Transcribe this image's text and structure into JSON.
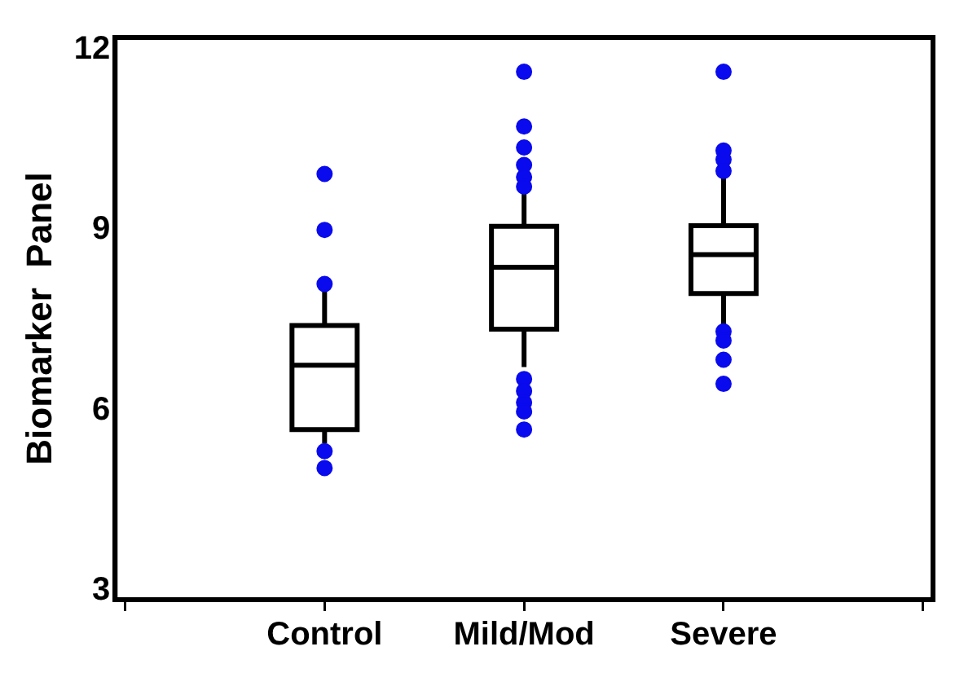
{
  "chart_data": {
    "type": "box",
    "ylabel": "Biomarker  Panel",
    "categories": [
      "Control",
      "Mild/Mod",
      "Severe"
    ],
    "ylim": [
      2.85,
      12.2
    ],
    "yticks": [
      3,
      6,
      9,
      12
    ],
    "grid": false,
    "series": [
      {
        "color": "#000000",
        "boxes": [
          {
            "low": 5.45,
            "q1": 5.68,
            "median": 6.75,
            "q3": 7.41,
            "high": 8.0
          },
          {
            "low": 6.72,
            "q1": 7.35,
            "median": 8.38,
            "q3": 9.06,
            "high": 9.63
          },
          {
            "low": 7.36,
            "q1": 7.94,
            "median": 8.59,
            "q3": 9.07,
            "high": 9.86
          }
        ]
      },
      {
        "type": "scatter",
        "color": "#0a0aee",
        "marker": "circle",
        "x": [
          "Control",
          "Control",
          "Control",
          "Control",
          "Control",
          "Mild/Mod",
          "Mild/Mod",
          "Mild/Mod",
          "Mild/Mod",
          "Mild/Mod",
          "Mild/Mod",
          "Mild/Mod",
          "Mild/Mod",
          "Mild/Mod",
          "Mild/Mod",
          "Mild/Mod",
          "Severe",
          "Severe",
          "Severe",
          "Severe",
          "Severe",
          "Severe",
          "Severe",
          "Severe"
        ],
        "values": [
          5.32,
          5.04,
          8.1,
          9.0,
          9.93,
          11.63,
          10.72,
          10.37,
          10.08,
          9.88,
          9.72,
          6.52,
          6.32,
          6.13,
          5.98,
          5.68,
          11.63,
          10.32,
          10.17,
          9.98,
          7.31,
          7.16,
          6.84,
          6.44
        ]
      }
    ]
  }
}
